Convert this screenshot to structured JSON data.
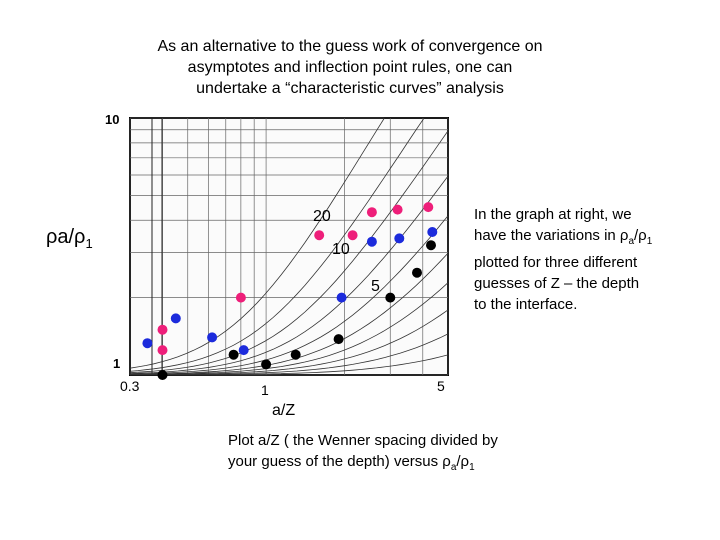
{
  "title_lines": [
    "As an alternative to the guess work of convergence on",
    "asymptotes and inflection point rules, one can",
    "undertake a “characteristic curves” analysis"
  ],
  "y_label": {
    "base": "ρa/ρ",
    "sub": "1"
  },
  "x_label": "a/Z",
  "right_note": {
    "l1": "In the graph at right, we",
    "l2_pre": "have the variations in ρ",
    "l2_sub1": "a",
    "l2_mid": "/ρ",
    "l2_sub2": "1",
    "l3": "plotted for three different",
    "l4": "guesses of Z – the depth",
    "l5": "to the interface."
  },
  "bottom_note": {
    "l1": "Plot a/Z ( the Wenner spacing divided by",
    "l2_pre": "your guess of the depth) versus ρ",
    "l2_sub1": "a",
    "l2_mid": "/ρ",
    "l2_sub2": "1"
  },
  "chart_labels": {
    "y_top": "10",
    "y_bottom": "1",
    "x_left": "0.3",
    "x_mid": "1",
    "x_right": "5",
    "z20": "20",
    "z10": "10",
    "z5": "5"
  },
  "chart_data": {
    "type": "scatter",
    "x_scale": "log",
    "y_scale": "log",
    "xlim": [
      0.3,
      5
    ],
    "ylim": [
      1,
      10
    ],
    "xlabel": "a/Z",
    "ylabel": "ρa/ρ1",
    "series": [
      {
        "name": "20",
        "color": "#ee1f7a",
        "points": [
          [
            0.4,
            1.5
          ],
          [
            0.4,
            1.25
          ],
          [
            0.8,
            2.0
          ],
          [
            1.6,
            3.5
          ],
          [
            2.15,
            3.5
          ],
          [
            2.55,
            4.3
          ],
          [
            3.2,
            4.4
          ],
          [
            4.2,
            4.5
          ]
        ]
      },
      {
        "name": "10",
        "color": "#1c2bdc",
        "points": [
          [
            0.35,
            1.33
          ],
          [
            0.45,
            1.66
          ],
          [
            0.62,
            1.4
          ],
          [
            0.82,
            1.25
          ],
          [
            1.95,
            2.0
          ],
          [
            2.55,
            3.3
          ],
          [
            3.25,
            3.4
          ],
          [
            4.35,
            3.6
          ]
        ]
      },
      {
        "name": "5",
        "color": "#000000",
        "points": [
          [
            0.4,
            1.0
          ],
          [
            0.75,
            1.2
          ],
          [
            1.0,
            1.1
          ],
          [
            1.3,
            1.2
          ],
          [
            1.9,
            1.38
          ],
          [
            3.0,
            2.0
          ],
          [
            3.8,
            2.5
          ],
          [
            4.3,
            3.2
          ]
        ]
      }
    ]
  },
  "colors": {
    "series_20": "#ee1f7a",
    "series_10": "#1c2bdc",
    "series_5": "#000000"
  }
}
